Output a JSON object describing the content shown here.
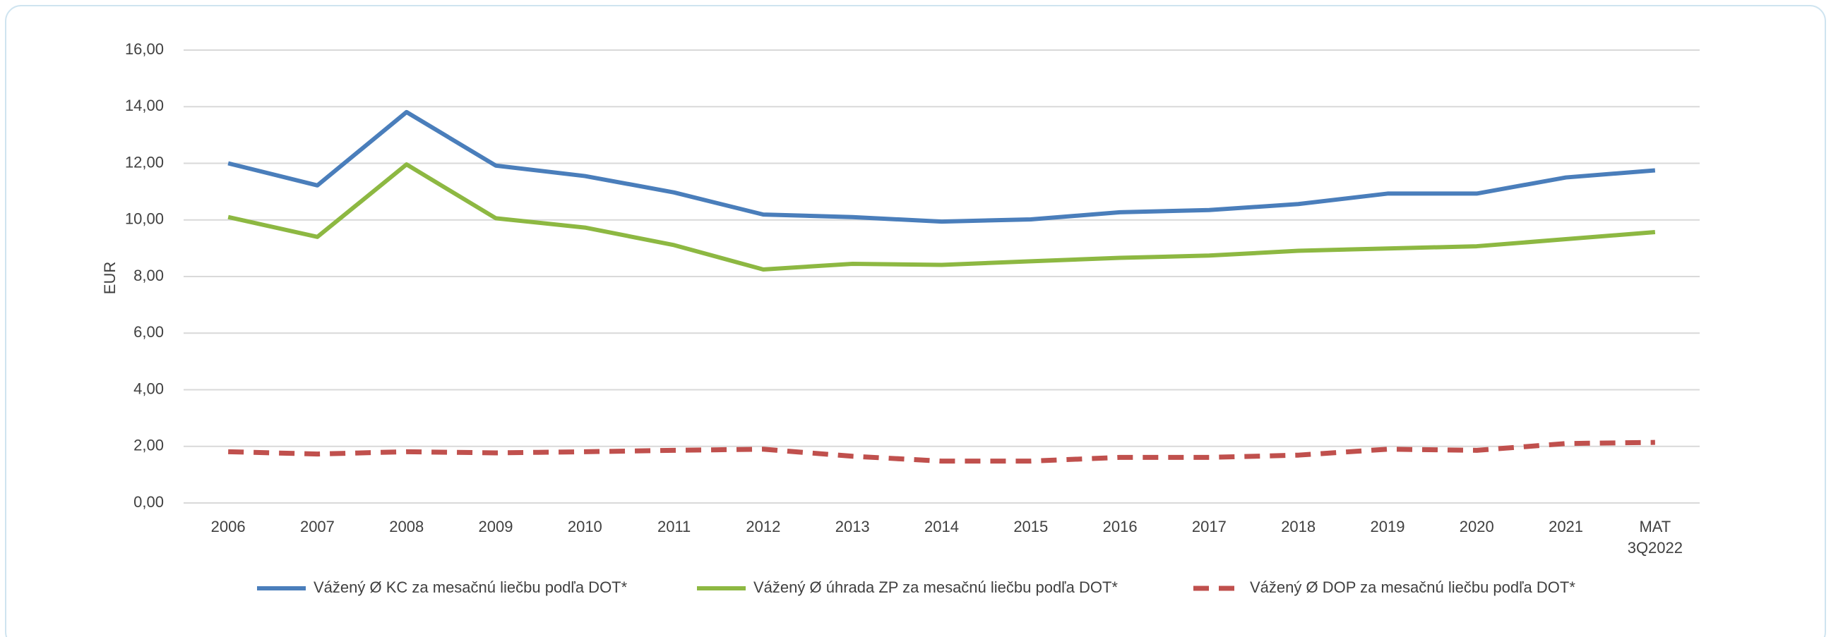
{
  "chart_data": {
    "type": "line",
    "y_label": "EUR",
    "categories": [
      "2006",
      "2007",
      "2008",
      "2009",
      "2010",
      "2011",
      "2012",
      "2013",
      "2014",
      "2015",
      "2016",
      "2017",
      "2018",
      "2019",
      "2020",
      "2021",
      "MAT 3Q2022"
    ],
    "series": [
      {
        "name": "Vážený Ø KC za mesačnú liečbu podľa DOT*",
        "color": "#4a7ebb",
        "dashed": false,
        "values": [
          12.0,
          11.22,
          13.81,
          11.92,
          11.55,
          10.97,
          10.19,
          10.1,
          9.94,
          10.02,
          10.27,
          10.35,
          10.56,
          10.93,
          10.93,
          11.5,
          11.75
        ]
      },
      {
        "name": "Vážený Ø úhrada ZP za mesačnú liečbu podľa DOT*",
        "color": "#8db842",
        "dashed": false,
        "values": [
          10.1,
          9.4,
          11.96,
          10.06,
          9.73,
          9.11,
          8.25,
          8.45,
          8.41,
          8.54,
          8.66,
          8.74,
          8.91,
          8.99,
          9.07,
          9.32,
          9.57
        ]
      },
      {
        "name": "Vážený Ø DOP za mesačnú liečbu podľa DOT*",
        "color": "#c0504d",
        "dashed": true,
        "values": [
          1.81,
          1.73,
          1.81,
          1.77,
          1.81,
          1.86,
          1.9,
          1.65,
          1.48,
          1.48,
          1.61,
          1.61,
          1.69,
          1.9,
          1.86,
          2.1,
          2.14
        ]
      }
    ],
    "ylim": [
      0,
      16
    ],
    "yticks": [
      {
        "value": 0,
        "label": "0,00"
      },
      {
        "value": 2,
        "label": "2,00"
      },
      {
        "value": 4,
        "label": "4,00"
      },
      {
        "value": 6,
        "label": "6,00"
      },
      {
        "value": 8,
        "label": "8,00"
      },
      {
        "value": 10,
        "label": "10,00"
      },
      {
        "value": 12,
        "label": "12,00"
      },
      {
        "value": 14,
        "label": "14,00"
      },
      {
        "value": 16,
        "label": "16,00"
      }
    ],
    "grid": true,
    "legend": "bottom"
  }
}
